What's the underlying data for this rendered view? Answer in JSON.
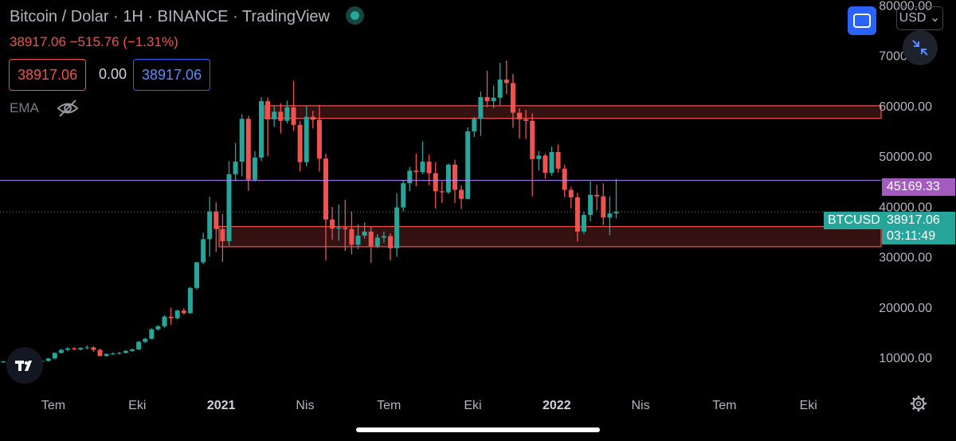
{
  "header": {
    "title": "Bitcoin / Dolar · 1H · BINANCE · TradingView",
    "ohlc": "38917.06  −515.76 (−1.31%)"
  },
  "trade": {
    "sell": "38917.06",
    "spread": "0.00",
    "buy": "38917.06"
  },
  "indicator": {
    "name": "EMA",
    "icon": "eye-off-icon"
  },
  "currency": "USD",
  "colors": {
    "up": "#26a69a",
    "down": "#ef5350",
    "zone": "#ef5350",
    "hline": "#b388ff",
    "accent": "#2962ff"
  },
  "price_labels": {
    "hline": "45169.33",
    "last": "38917.06",
    "countdown": "03:11:49",
    "symbol": "BTCUSD"
  },
  "chart_data": {
    "type": "candlestick",
    "xlabel": "",
    "ylabel": "",
    "ylim": [
      4000,
      81000
    ],
    "y_ticks": [
      10000,
      20000,
      30000,
      40000,
      50000,
      60000,
      70000,
      80000
    ],
    "y_tick_labels": [
      "10000.00",
      "20000.00",
      "30000.00",
      "40000.00",
      "50000.00",
      "60000.00",
      "70000.00",
      "80000.00"
    ],
    "x_ticks": [
      {
        "label": "Tem",
        "bold": false,
        "period": 0
      },
      {
        "label": "Eki",
        "bold": false,
        "period": 13
      },
      {
        "label": "2021",
        "bold": true,
        "period": 26
      },
      {
        "label": "Nis",
        "bold": false,
        "period": 39
      },
      {
        "label": "Tem",
        "bold": false,
        "period": 52
      },
      {
        "label": "Eki",
        "bold": false,
        "period": 65
      },
      {
        "label": "2022",
        "bold": true,
        "period": 78
      },
      {
        "label": "Nis",
        "bold": false,
        "period": 91
      },
      {
        "label": "Tem",
        "bold": false,
        "period": 104
      },
      {
        "label": "Eki",
        "bold": false,
        "period": 117
      }
    ],
    "zones": [
      {
        "from": 57500,
        "to": 60000
      },
      {
        "from": 32000,
        "to": 36000
      }
    ],
    "hline": 45169.33,
    "last_price": 38917.06,
    "candles": [
      [
        9100,
        9300,
        8900,
        9200
      ],
      [
        9200,
        9400,
        9000,
        9100
      ],
      [
        9100,
        9300,
        8700,
        9000
      ],
      [
        9000,
        9200,
        8800,
        9100
      ],
      [
        9100,
        9250,
        9000,
        9150
      ],
      [
        9150,
        9300,
        9050,
        9200
      ],
      [
        9200,
        9500,
        9100,
        9300
      ],
      [
        9300,
        9900,
        9200,
        9800
      ],
      [
        9800,
        11000,
        9700,
        10900
      ],
      [
        10900,
        11700,
        10800,
        11500
      ],
      [
        11500,
        12000,
        11200,
        11800
      ],
      [
        11800,
        12100,
        11500,
        11600
      ],
      [
        11600,
        12000,
        11400,
        11900
      ],
      [
        11900,
        12400,
        11600,
        12000
      ],
      [
        12000,
        12200,
        11100,
        11500
      ],
      [
        11500,
        11800,
        10200,
        10300
      ],
      [
        10300,
        10800,
        10100,
        10700
      ],
      [
        10700,
        11000,
        10500,
        10800
      ],
      [
        10800,
        11100,
        10600,
        10900
      ],
      [
        10900,
        11500,
        10800,
        11300
      ],
      [
        11300,
        11800,
        11100,
        11600
      ],
      [
        11600,
        13300,
        11500,
        13100
      ],
      [
        13100,
        13900,
        12900,
        13700
      ],
      [
        13700,
        15800,
        13600,
        15600
      ],
      [
        15600,
        16400,
        15300,
        16200
      ],
      [
        16200,
        18400,
        15900,
        18100
      ],
      [
        18100,
        19900,
        16500,
        17800
      ],
      [
        17800,
        19500,
        17600,
        19300
      ],
      [
        19300,
        19800,
        18500,
        18800
      ],
      [
        18800,
        24000,
        18700,
        23800
      ],
      [
        23800,
        29000,
        23500,
        28900
      ],
      [
        28900,
        34800,
        28500,
        33500
      ],
      [
        33500,
        41900,
        30000,
        39000
      ],
      [
        39000,
        40800,
        31000,
        35500
      ],
      [
        35500,
        38500,
        29000,
        33100
      ],
      [
        33100,
        49000,
        32200,
        46400
      ],
      [
        46400,
        52600,
        45000,
        48900
      ],
      [
        48900,
        58300,
        46000,
        57400
      ],
      [
        57400,
        58000,
        43100,
        45300
      ],
      [
        45300,
        51000,
        44900,
        49700
      ],
      [
        49700,
        61700,
        49000,
        60900
      ],
      [
        60900,
        61600,
        50000,
        57300
      ],
      [
        57300,
        60000,
        55800,
        58800
      ],
      [
        58800,
        60500,
        54500,
        57000
      ],
      [
        57000,
        61000,
        56500,
        59700
      ],
      [
        59700,
        64900,
        55000,
        56200
      ],
      [
        56200,
        57000,
        47000,
        48800
      ],
      [
        48800,
        60000,
        48000,
        57800
      ],
      [
        57800,
        59000,
        55500,
        57200
      ],
      [
        57200,
        60000,
        46900,
        49500
      ],
      [
        49500,
        50500,
        29300,
        37400
      ],
      [
        37400,
        39900,
        33400,
        35600
      ],
      [
        35600,
        40400,
        33200,
        35800
      ],
      [
        35800,
        41300,
        31200,
        35500
      ],
      [
        35500,
        39000,
        30500,
        32400
      ],
      [
        32400,
        36500,
        31500,
        34200
      ],
      [
        34200,
        36800,
        33600,
        35000
      ],
      [
        35000,
        35900,
        28800,
        32100
      ],
      [
        32100,
        34500,
        31700,
        33800
      ],
      [
        33800,
        35000,
        32800,
        34100
      ],
      [
        34100,
        34600,
        29300,
        31700
      ],
      [
        31700,
        42600,
        30000,
        39800
      ],
      [
        39800,
        45300,
        39000,
        44600
      ],
      [
        44600,
        47800,
        43000,
        47100
      ],
      [
        47100,
        50500,
        44000,
        46800
      ],
      [
        46800,
        52900,
        46400,
        48900
      ],
      [
        48900,
        50300,
        44200,
        46600
      ],
      [
        46600,
        48800,
        39600,
        43000
      ],
      [
        43000,
        45000,
        40700,
        42800
      ],
      [
        42800,
        48500,
        42500,
        48300
      ],
      [
        48300,
        49300,
        40700,
        43300
      ],
      [
        43300,
        44200,
        39500,
        41500
      ],
      [
        41500,
        55700,
        41400,
        54900
      ],
      [
        54900,
        57800,
        53800,
        57400
      ],
      [
        57400,
        62800,
        54000,
        61700
      ],
      [
        61700,
        67000,
        59700,
        60900
      ],
      [
        60900,
        64000,
        59500,
        61600
      ],
      [
        61600,
        68500,
        60100,
        65200
      ],
      [
        65200,
        69000,
        62300,
        64500
      ],
      [
        64500,
        66300,
        55600,
        58600
      ],
      [
        58600,
        59500,
        53500,
        57300
      ],
      [
        57300,
        59200,
        53400,
        57000
      ],
      [
        57000,
        58500,
        42000,
        49400
      ],
      [
        49400,
        51000,
        47100,
        50100
      ],
      [
        50100,
        50500,
        45500,
        46700
      ],
      [
        46700,
        51900,
        46100,
        50800
      ],
      [
        50800,
        52300,
        46700,
        47500
      ],
      [
        47500,
        48300,
        41800,
        43300
      ],
      [
        43300,
        43900,
        39600,
        41800
      ],
      [
        41800,
        42700,
        33000,
        35000
      ],
      [
        35000,
        39000,
        34500,
        38300
      ],
      [
        38300,
        45000,
        37000,
        42300
      ],
      [
        42300,
        44300,
        39200,
        42000
      ],
      [
        42000,
        44600,
        36300,
        37800
      ],
      [
        37800,
        42000,
        34300,
        38600
      ],
      [
        38600,
        45500,
        37600,
        38917.06
      ]
    ]
  }
}
